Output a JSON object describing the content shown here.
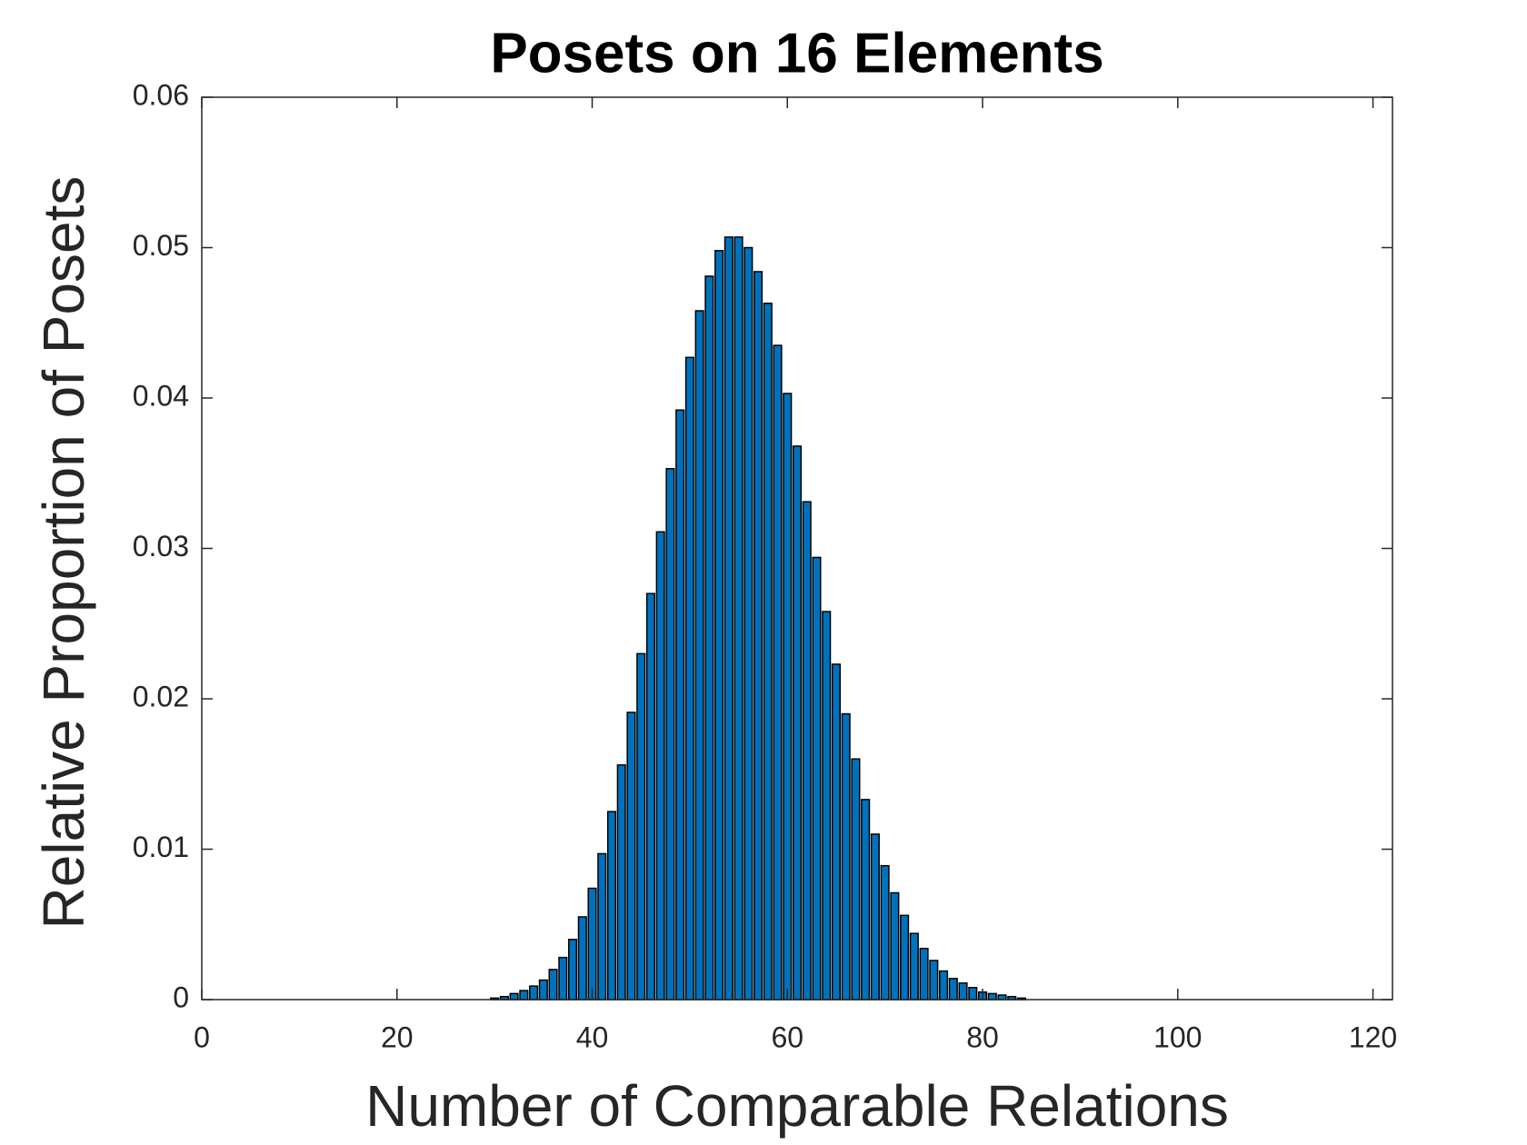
{
  "chart_data": {
    "type": "bar",
    "title": "Posets on 16 Elements",
    "x_label": "Number of Comparable Relations",
    "y_label": "Relative Proportion of Posets",
    "color": "#0072bd",
    "x": [
      0,
      1,
      2,
      3,
      4,
      5,
      6,
      7,
      8,
      9,
      10,
      11,
      12,
      13,
      14,
      15,
      16,
      17,
      18,
      19,
      20,
      21,
      22,
      23,
      24,
      25,
      26,
      27,
      28,
      29,
      30,
      31,
      32,
      33,
      34,
      35,
      36,
      37,
      38,
      39,
      40,
      41,
      42,
      43,
      44,
      45,
      46,
      47,
      48,
      49,
      50,
      51,
      52,
      53,
      54,
      55,
      56,
      57,
      58,
      59,
      60,
      61,
      62,
      63,
      64,
      65,
      66,
      67,
      68,
      69,
      70,
      71,
      72,
      73,
      74,
      75,
      76,
      77,
      78,
      79,
      80,
      81,
      82,
      83,
      84,
      85,
      86,
      87,
      88,
      89,
      90,
      91,
      92,
      93,
      94,
      95,
      96,
      97,
      98,
      99,
      100,
      101,
      102,
      103,
      104,
      105,
      106,
      107,
      108,
      109,
      110,
      111,
      112,
      113,
      114,
      115,
      116,
      117,
      118,
      119,
      120
    ],
    "values": [
      0,
      0,
      0,
      0,
      0,
      0,
      0,
      0,
      0,
      0,
      0,
      0,
      0,
      0,
      0,
      0,
      0,
      0,
      0,
      0,
      0,
      0,
      0,
      0,
      0,
      0,
      0,
      0,
      0,
      0,
      0.0001,
      0.0002,
      0.0004,
      0.0006,
      0.0009,
      0.0013,
      0.002,
      0.0028,
      0.004,
      0.0055,
      0.0074,
      0.0097,
      0.0125,
      0.0156,
      0.0191,
      0.023,
      0.027,
      0.0311,
      0.0353,
      0.0392,
      0.0427,
      0.0458,
      0.0481,
      0.0498,
      0.0507,
      0.0507,
      0.05,
      0.0484,
      0.0463,
      0.0435,
      0.0403,
      0.0368,
      0.0331,
      0.0294,
      0.0258,
      0.0223,
      0.019,
      0.016,
      0.0133,
      0.011,
      0.0089,
      0.0071,
      0.0056,
      0.0044,
      0.0034,
      0.0026,
      0.0019,
      0.0014,
      0.0011,
      0.0008,
      0.0005,
      0.0004,
      0.0003,
      0.0002,
      0.0001,
      0,
      0,
      0,
      0,
      0,
      0,
      0,
      0,
      0,
      0,
      0,
      0,
      0,
      0,
      0,
      0,
      0,
      0,
      0,
      0,
      0,
      0,
      0,
      0,
      0,
      0,
      0,
      0,
      0,
      0,
      0,
      0,
      0,
      0,
      0,
      0
    ],
    "xlim": [
      0,
      122
    ],
    "xticks": [
      0,
      20,
      40,
      60,
      80,
      100,
      120
    ],
    "ylim": [
      0,
      0.06
    ],
    "yticks": [
      0,
      0.01,
      0.02,
      0.03,
      0.04,
      0.05,
      0.06
    ]
  }
}
